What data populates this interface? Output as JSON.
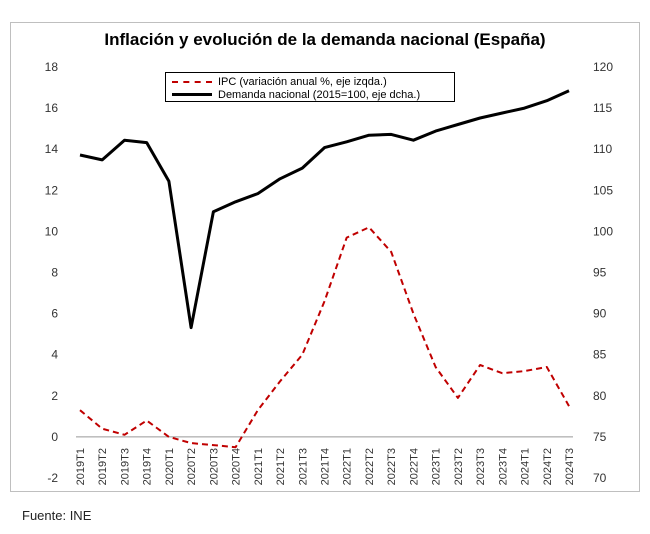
{
  "chart_data": {
    "type": "line",
    "title": "Inflación y evolución de la demanda nacional (España)",
    "categories": [
      "2019T1",
      "2019T2",
      "2019T3",
      "2019T4",
      "2020T1",
      "2020T2",
      "2020T3",
      "2020T4",
      "2021T1",
      "2021T2",
      "2021T3",
      "2021T4",
      "2022T1",
      "2022T2",
      "2022T3",
      "2022T4",
      "2023T1",
      "2023T2",
      "2023T3",
      "2023T4",
      "2024T1",
      "2024T2",
      "2024T3"
    ],
    "series": [
      {
        "name": "IPC (variación anual %, eje izqda.)",
        "axis": "left",
        "style": "dashed",
        "color": "#c00000",
        "values": [
          1.3,
          0.4,
          0.1,
          0.8,
          0.0,
          -0.3,
          -0.4,
          -0.5,
          1.3,
          2.7,
          4.0,
          6.6,
          9.7,
          10.2,
          9.0,
          6.0,
          3.4,
          1.9,
          3.5,
          3.1,
          3.2,
          3.4,
          1.5
        ]
      },
      {
        "name": "Demanda nacional (2015=100, eje dcha.)",
        "axis": "right",
        "style": "solid",
        "color": "#000000",
        "values": [
          109.3,
          108.7,
          111.1,
          110.8,
          106.1,
          88.3,
          102.4,
          103.6,
          104.6,
          106.4,
          107.7,
          110.2,
          110.9,
          111.7,
          111.8,
          111.1,
          112.2,
          113.0,
          113.8,
          114.4,
          115.0,
          115.9,
          117.1
        ]
      }
    ],
    "ylim_left": [
      -2,
      18
    ],
    "yticks_left": [
      "-2",
      "0",
      "2",
      "4",
      "6",
      "8",
      "10",
      "12",
      "14",
      "16",
      "18"
    ],
    "ylim_right": [
      70,
      120
    ],
    "yticks_right": [
      "70",
      "75",
      "80",
      "85",
      "90",
      "95",
      "100",
      "105",
      "110",
      "115",
      "120"
    ],
    "grid": false,
    "legend_position": "top-left"
  },
  "source": "Fuente: INE"
}
